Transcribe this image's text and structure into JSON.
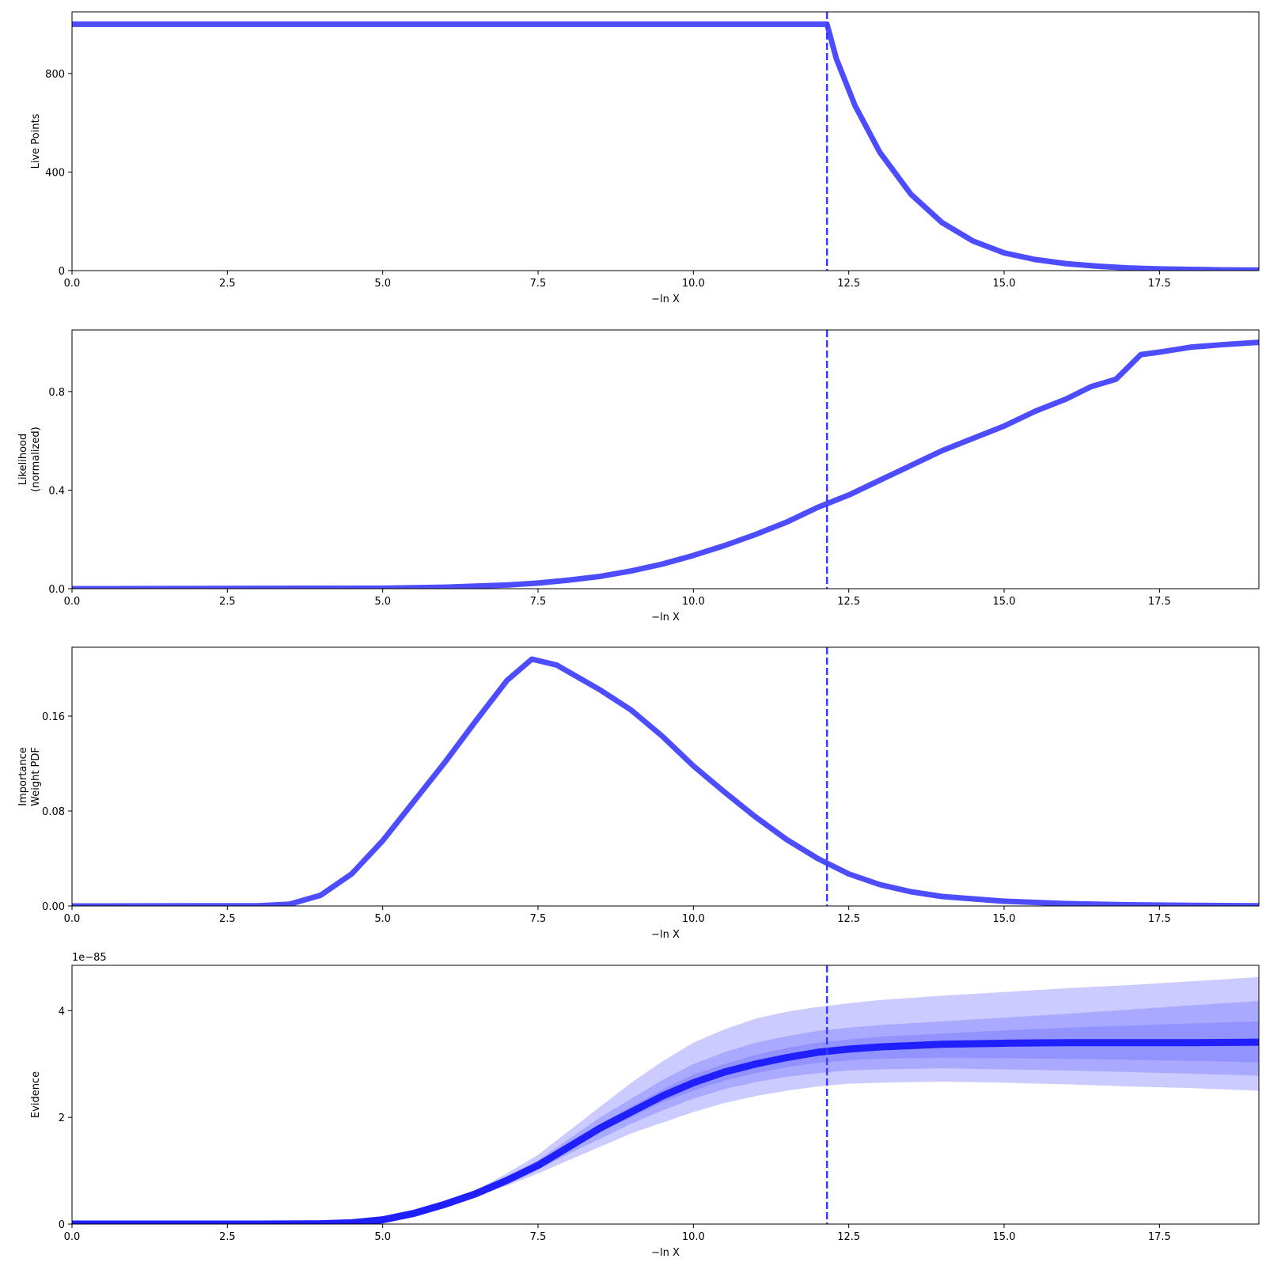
{
  "chart_data": [
    {
      "type": "line",
      "ylabel": [
        "Live Points"
      ],
      "xlabel": "−ln X",
      "xlim": [
        0,
        19.1
      ],
      "ylim": [
        0,
        1050
      ],
      "xticks": [
        "0.0",
        "2.5",
        "5.0",
        "7.5",
        "10.0",
        "12.5",
        "15.0",
        "17.5"
      ],
      "yticks": [
        "0",
        "400",
        "800"
      ],
      "vline_x": 12.15,
      "series": [
        {
          "color": "#4d4dff",
          "x": [
            0,
            12.15,
            12.3,
            12.6,
            13.0,
            13.5,
            14.0,
            14.5,
            15.0,
            15.5,
            16.0,
            16.5,
            17.0,
            17.5,
            18.0,
            18.5,
            19.1
          ],
          "y": [
            1000,
            1000,
            860,
            670,
            480,
            310,
            195,
            120,
            72,
            45,
            28,
            18,
            11,
            7,
            5,
            3,
            2
          ]
        }
      ]
    },
    {
      "type": "line",
      "ylabel": [
        "Likelihood",
        "(normalized)"
      ],
      "xlabel": "−ln X",
      "xlim": [
        0,
        19.1
      ],
      "ylim": [
        0,
        1.05
      ],
      "xticks": [
        "0.0",
        "2.5",
        "5.0",
        "7.5",
        "10.0",
        "12.5",
        "15.0",
        "17.5"
      ],
      "yticks": [
        "0.0",
        "0.4",
        "0.8"
      ],
      "vline_x": 12.15,
      "series": [
        {
          "color": "#4d4dff",
          "x": [
            0,
            5.0,
            6.0,
            7.0,
            7.5,
            8.0,
            8.5,
            9.0,
            9.5,
            10.0,
            10.5,
            11.0,
            11.5,
            12.0,
            12.5,
            13.0,
            13.5,
            14.0,
            14.5,
            15.0,
            15.5,
            16.0,
            16.4,
            16.8,
            17.0,
            17.2,
            17.5,
            18.0,
            18.5,
            19.1
          ],
          "y": [
            0,
            0.002,
            0.006,
            0.015,
            0.023,
            0.035,
            0.05,
            0.072,
            0.1,
            0.135,
            0.175,
            0.22,
            0.27,
            0.33,
            0.38,
            0.44,
            0.5,
            0.56,
            0.61,
            0.66,
            0.72,
            0.77,
            0.82,
            0.85,
            0.9,
            0.95,
            0.96,
            0.98,
            0.99,
            1.0
          ]
        }
      ]
    },
    {
      "type": "line",
      "ylabel": [
        "Importance",
        "Weight PDF"
      ],
      "xlabel": "−ln X",
      "xlim": [
        0,
        19.1
      ],
      "ylim": [
        0,
        0.218
      ],
      "xticks": [
        "0.0",
        "2.5",
        "5.0",
        "7.5",
        "10.0",
        "12.5",
        "15.0",
        "17.5"
      ],
      "yticks": [
        "0.00",
        "0.08",
        "0.16"
      ],
      "vline_x": 12.15,
      "series": [
        {
          "color": "#4d4dff",
          "x": [
            0,
            3.0,
            3.5,
            4.0,
            4.5,
            5.0,
            5.5,
            6.0,
            6.5,
            7.0,
            7.4,
            7.8,
            8.5,
            9.0,
            9.5,
            10.0,
            10.5,
            11.0,
            11.5,
            12.0,
            12.5,
            13.0,
            13.5,
            14.0,
            15.0,
            16.0,
            17.0,
            18.0,
            19.1
          ],
          "y": [
            0,
            0.0002,
            0.0015,
            0.009,
            0.027,
            0.055,
            0.088,
            0.121,
            0.156,
            0.19,
            0.208,
            0.203,
            0.182,
            0.165,
            0.143,
            0.118,
            0.096,
            0.075,
            0.056,
            0.04,
            0.027,
            0.018,
            0.012,
            0.008,
            0.004,
            0.002,
            0.001,
            0.0005,
            0.0002
          ]
        }
      ]
    },
    {
      "type": "area",
      "ylabel": [
        "Evidence"
      ],
      "xlabel": "−ln X",
      "offset_label": "1e−85",
      "xlim": [
        0,
        19.1
      ],
      "ylim": [
        0,
        4.85
      ],
      "xticks": [
        "0.0",
        "2.5",
        "5.0",
        "7.5",
        "10.0",
        "12.5",
        "15.0",
        "17.5"
      ],
      "yticks": [
        "0",
        "2",
        "4"
      ],
      "vline_x": 12.15,
      "x": [
        0,
        3.0,
        4.0,
        4.5,
        5.0,
        5.5,
        6.0,
        6.5,
        7.0,
        7.5,
        8.0,
        8.5,
        9.0,
        9.5,
        10.0,
        10.5,
        11.0,
        11.5,
        12.0,
        12.5,
        13.0,
        14.0,
        15.0,
        16.0,
        17.0,
        18.0,
        19.1
      ],
      "series": [
        {
          "name": "",
          "color": "#1f1fff",
          "values": [
            0,
            0.0004,
            0.005,
            0.025,
            0.08,
            0.2,
            0.37,
            0.57,
            0.82,
            1.1,
            1.45,
            1.8,
            2.1,
            2.4,
            2.65,
            2.85,
            3.0,
            3.12,
            3.22,
            3.28,
            3.32,
            3.37,
            3.39,
            3.4,
            3.4,
            3.4,
            3.41
          ]
        }
      ],
      "bands": [
        {
          "color": "#6b6bff",
          "opacity": 0.35,
          "lower": [
            0,
            0.0004,
            0.005,
            0.024,
            0.077,
            0.19,
            0.34,
            0.52,
            0.72,
            0.95,
            1.2,
            1.45,
            1.7,
            1.9,
            2.1,
            2.27,
            2.4,
            2.5,
            2.58,
            2.63,
            2.65,
            2.67,
            2.65,
            2.62,
            2.58,
            2.55,
            2.5
          ],
          "upper": [
            0,
            0.0004,
            0.006,
            0.027,
            0.085,
            0.21,
            0.4,
            0.63,
            0.95,
            1.3,
            1.75,
            2.2,
            2.65,
            3.05,
            3.4,
            3.65,
            3.85,
            3.98,
            4.07,
            4.14,
            4.2,
            4.28,
            4.35,
            4.42,
            4.48,
            4.55,
            4.63
          ]
        },
        {
          "color": "#6b6bff",
          "opacity": 0.35,
          "lower": [
            0,
            0.0004,
            0.005,
            0.024,
            0.078,
            0.195,
            0.355,
            0.545,
            0.77,
            1.02,
            1.32,
            1.6,
            1.88,
            2.13,
            2.35,
            2.53,
            2.66,
            2.76,
            2.83,
            2.88,
            2.9,
            2.92,
            2.9,
            2.88,
            2.85,
            2.82,
            2.78
          ],
          "upper": [
            0,
            0.0004,
            0.005,
            0.026,
            0.083,
            0.205,
            0.385,
            0.6,
            0.88,
            1.2,
            1.6,
            2.0,
            2.35,
            2.7,
            3.0,
            3.22,
            3.4,
            3.52,
            3.62,
            3.68,
            3.73,
            3.8,
            3.87,
            3.94,
            4.02,
            4.1,
            4.18
          ]
        },
        {
          "color": "#6b6bff",
          "opacity": 0.35,
          "lower": [
            0,
            0.0004,
            0.005,
            0.025,
            0.079,
            0.198,
            0.365,
            0.56,
            0.8,
            1.07,
            1.4,
            1.72,
            2.0,
            2.28,
            2.5,
            2.69,
            2.83,
            2.94,
            3.02,
            3.07,
            3.1,
            3.12,
            3.11,
            3.1,
            3.08,
            3.06,
            3.03
          ],
          "upper": [
            0,
            0.0004,
            0.005,
            0.025,
            0.081,
            0.202,
            0.375,
            0.58,
            0.84,
            1.13,
            1.5,
            1.88,
            2.2,
            2.52,
            2.8,
            3.0,
            3.17,
            3.3,
            3.4,
            3.46,
            3.51,
            3.57,
            3.63,
            3.68,
            3.72,
            3.76,
            3.8
          ]
        }
      ]
    }
  ]
}
